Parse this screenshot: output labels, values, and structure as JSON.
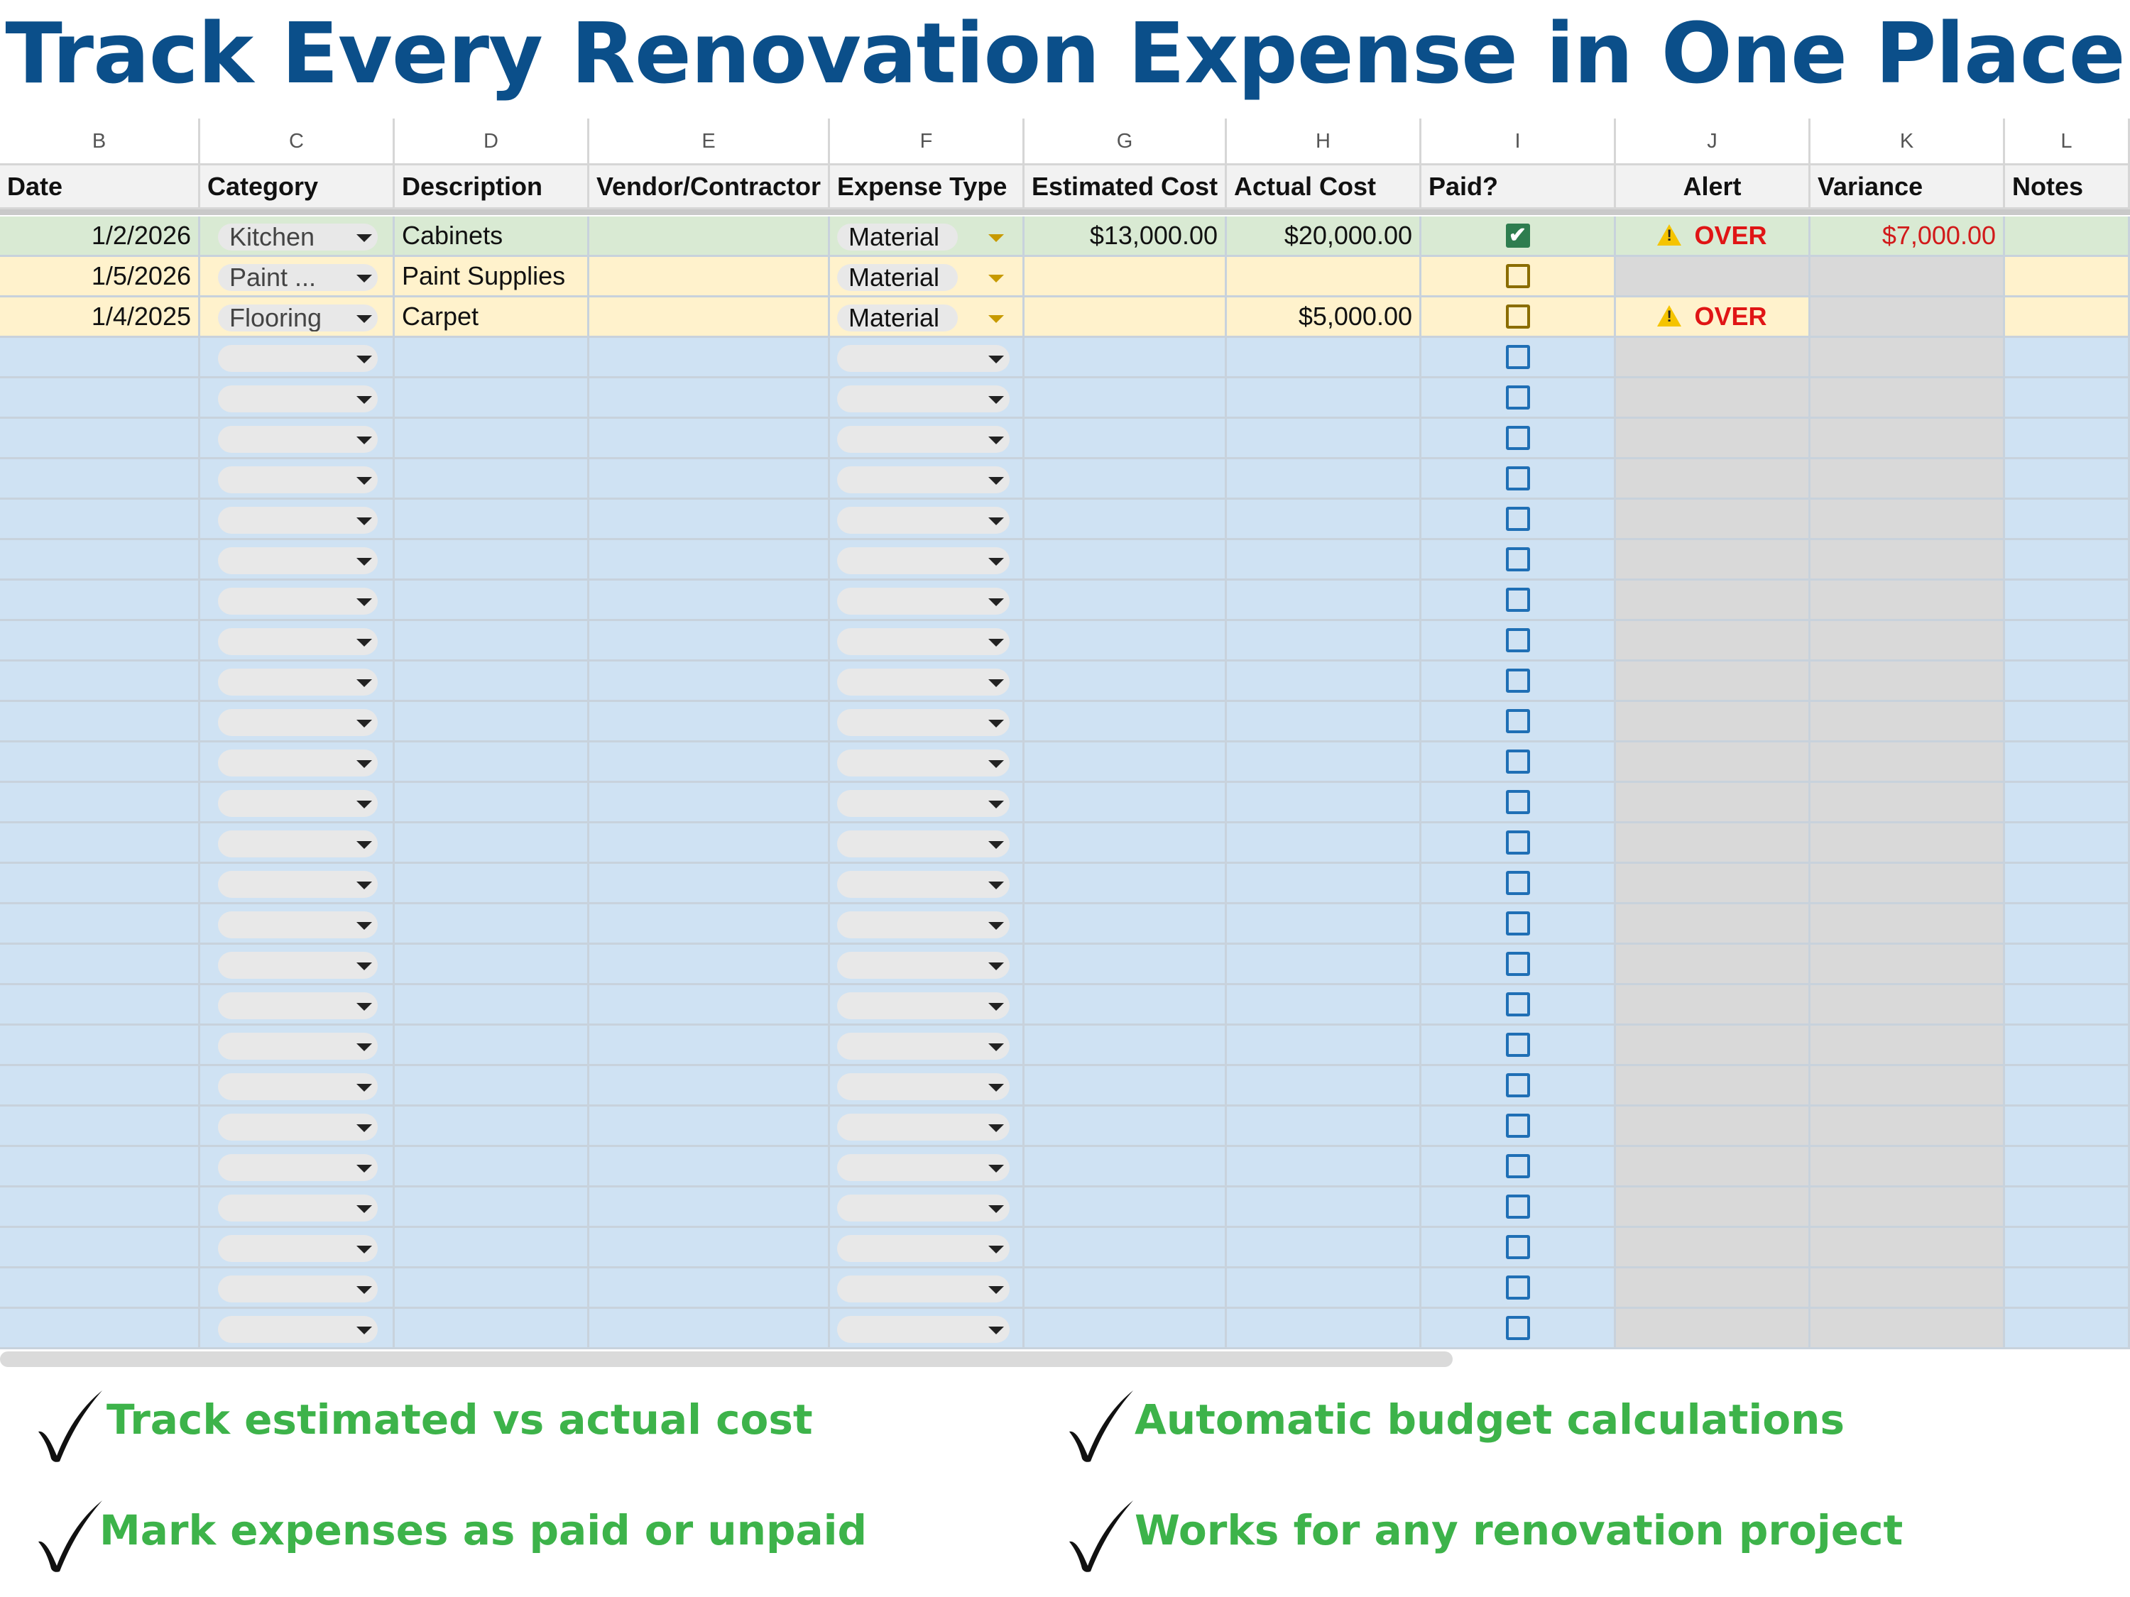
{
  "title": "Track Every Renovation Expense in One Place",
  "sheet": {
    "column_letters": [
      "B",
      "C",
      "D",
      "E",
      "F",
      "G",
      "H",
      "I",
      "J",
      "K",
      "L"
    ],
    "headers": [
      "Date",
      "Category",
      "Description",
      "Vendor/Contractor",
      "Expense Type",
      "Estimated Cost",
      "Actual Cost",
      "Paid?",
      "Alert",
      "Variance",
      "Notes"
    ],
    "rows": [
      {
        "date": "1/2/2026",
        "category": "Kitchen",
        "description": "Cabinets",
        "vendor": "",
        "expense_type": "Material",
        "estimated": "$13,000.00",
        "actual": "$20,000.00",
        "paid": true,
        "alert": "OVER",
        "variance": "$7,000.00",
        "notes": "",
        "status": "green"
      },
      {
        "date": "1/5/2026",
        "category": "Paint ...",
        "description": "Paint Supplies",
        "vendor": "",
        "expense_type": "Material",
        "estimated": "",
        "actual": "",
        "paid": false,
        "alert": "",
        "variance": "",
        "notes": "",
        "status": "yellow"
      },
      {
        "date": "1/4/2025",
        "category": "Flooring",
        "description": "Carpet",
        "vendor": "",
        "expense_type": "Material",
        "estimated": "",
        "actual": "$5,000.00",
        "paid": false,
        "alert": "OVER",
        "variance": "",
        "notes": "",
        "status": "yellow"
      }
    ],
    "empty_row_count": 25,
    "colors": {
      "green_row": "#d9ead3",
      "yellow_row": "#fff2cc",
      "blue_row": "#cfe2f3",
      "computed_col": "#d9d9d9",
      "alert_red": "#e01515"
    }
  },
  "features": [
    "Track estimated vs actual cost",
    "Automatic budget calculations",
    "Mark expenses as paid or unpaid",
    "Works for any renovation project"
  ],
  "icons": {
    "check": "check-mark-icon",
    "warning": "warning-icon",
    "dropdown": "dropdown-caret-icon"
  }
}
